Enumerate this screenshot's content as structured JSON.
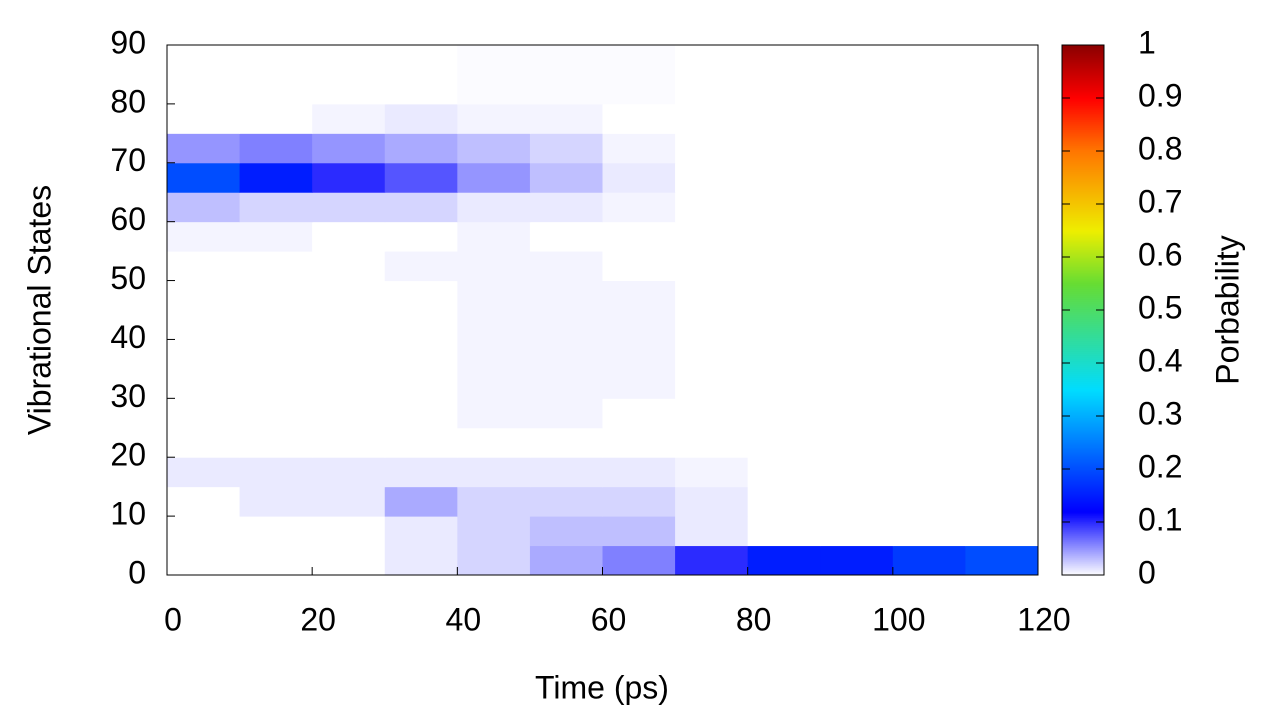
{
  "chart_data": {
    "type": "heatmap",
    "xlabel": "Time (ps)",
    "ylabel": "Vibrational States",
    "colorbar_label": "Porbability",
    "xbins": [
      0,
      10,
      20,
      30,
      40,
      50,
      60,
      70,
      80,
      90,
      100,
      110,
      120
    ],
    "ybins": [
      0,
      5,
      10,
      15,
      20,
      25,
      30,
      35,
      40,
      45,
      50,
      55,
      60,
      65,
      70,
      75,
      80,
      85,
      90
    ],
    "z": [
      [
        0,
        0,
        0,
        0.01,
        0.02,
        0.04,
        0.06,
        0.1,
        0.15,
        0.15,
        0.18,
        0.2
      ],
      [
        0,
        0,
        0,
        0.01,
        0.02,
        0.03,
        0.03,
        0.01,
        0,
        0,
        0,
        0
      ],
      [
        0,
        0.01,
        0.01,
        0.04,
        0.02,
        0.02,
        0.02,
        0.01,
        0,
        0,
        0,
        0
      ],
      [
        0.01,
        0.01,
        0.01,
        0.01,
        0.01,
        0.01,
        0.01,
        0.005,
        0,
        0,
        0,
        0
      ],
      [
        0,
        0,
        0,
        0,
        0,
        0,
        0,
        0,
        0,
        0,
        0,
        0
      ],
      [
        0,
        0,
        0,
        0,
        0.005,
        0.005,
        0,
        0,
        0,
        0,
        0,
        0
      ],
      [
        0,
        0,
        0,
        0,
        0.005,
        0.005,
        0.005,
        0,
        0,
        0,
        0,
        0
      ],
      [
        0,
        0,
        0,
        0,
        0.005,
        0.005,
        0.005,
        0,
        0,
        0,
        0,
        0
      ],
      [
        0,
        0,
        0,
        0,
        0.005,
        0.005,
        0.005,
        0,
        0,
        0,
        0,
        0
      ],
      [
        0,
        0,
        0,
        0,
        0.005,
        0.005,
        0.005,
        0,
        0,
        0,
        0,
        0
      ],
      [
        0,
        0,
        0,
        0.005,
        0.005,
        0.005,
        0,
        0,
        0,
        0,
        0,
        0
      ],
      [
        0.005,
        0.005,
        0,
        0,
        0.005,
        0,
        0,
        0,
        0,
        0,
        0,
        0
      ],
      [
        0.03,
        0.02,
        0.02,
        0.02,
        0.01,
        0.01,
        0.005,
        0,
        0,
        0,
        0,
        0
      ],
      [
        0.2,
        0.15,
        0.1,
        0.08,
        0.05,
        0.03,
        0.01,
        0,
        0,
        0,
        0,
        0
      ],
      [
        0.05,
        0.06,
        0.05,
        0.04,
        0.03,
        0.02,
        0.005,
        0,
        0,
        0,
        0,
        0
      ],
      [
        0,
        0,
        0.005,
        0.01,
        0.005,
        0.005,
        0,
        0,
        0,
        0,
        0,
        0
      ],
      [
        0,
        0,
        0,
        0,
        0.002,
        0.002,
        0.002,
        0,
        0,
        0,
        0,
        0
      ],
      [
        0,
        0,
        0,
        0,
        0.002,
        0.002,
        0.002,
        0,
        0,
        0,
        0,
        0
      ]
    ],
    "xlim": [
      0,
      120
    ],
    "xticks": [
      0,
      20,
      40,
      60,
      80,
      100,
      120
    ],
    "ylim": [
      0,
      90
    ],
    "yticks": [
      0,
      10,
      20,
      30,
      40,
      50,
      60,
      70,
      80,
      90
    ],
    "zlim": [
      0,
      1
    ],
    "zticks": [
      0,
      0.1,
      0.2,
      0.3,
      0.4,
      0.5,
      0.6,
      0.7,
      0.8,
      0.9,
      1
    ],
    "colormap": [
      {
        "value": 0,
        "color": "#ffffff"
      },
      {
        "value": 0.12,
        "color": "#0000ff"
      },
      {
        "value": 0.35,
        "color": "#00ddff"
      },
      {
        "value": 0.55,
        "color": "#66dd33"
      },
      {
        "value": 0.65,
        "color": "#eeee00"
      },
      {
        "value": 0.8,
        "color": "#ff7700"
      },
      {
        "value": 0.9,
        "color": "#ff0000"
      },
      {
        "value": 1,
        "color": "#8b0000"
      }
    ]
  }
}
